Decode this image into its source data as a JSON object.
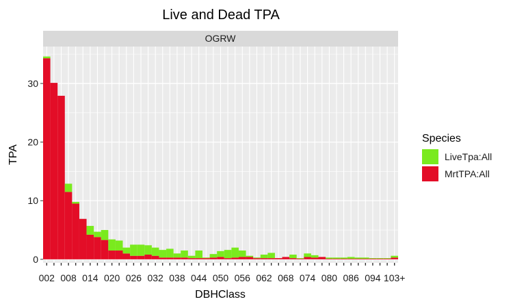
{
  "chart_data": {
    "type": "bar",
    "stacked": true,
    "title": "Live and Dead TPA",
    "facet": "OGRW",
    "xlabel": "DBHClass",
    "ylabel": "TPA",
    "ylim": [
      -0.6,
      36.3
    ],
    "yticks": [
      0,
      10,
      20,
      30
    ],
    "grid": true,
    "xtick_labels": [
      "002",
      "008",
      "014",
      "020",
      "026",
      "032",
      "038",
      "044",
      "050",
      "056",
      "062",
      "068",
      "074",
      "080",
      "086",
      "094",
      "103+"
    ],
    "legend_title": "Species",
    "legend_position": "right",
    "categories": [
      "002",
      "004",
      "006",
      "008",
      "010",
      "012",
      "014",
      "016",
      "018",
      "020",
      "022",
      "024",
      "026",
      "028",
      "030",
      "032",
      "034",
      "036",
      "038",
      "040",
      "042",
      "044",
      "046",
      "048",
      "050",
      "052",
      "054",
      "056",
      "058",
      "060",
      "062",
      "064",
      "066",
      "068",
      "070",
      "072",
      "074",
      "076",
      "078",
      "080",
      "082",
      "084",
      "086",
      "088",
      "090",
      "094",
      "097",
      "100",
      "103+"
    ],
    "series": [
      {
        "name": "MrtTPA:All",
        "color": "#e30d27",
        "values": [
          34.3,
          30.1,
          27.9,
          11.5,
          9.5,
          6.9,
          4.2,
          3.8,
          3.3,
          1.5,
          1.5,
          1.0,
          0.6,
          0.6,
          0.8,
          0.6,
          0.3,
          0.3,
          0.3,
          0.3,
          0.2,
          0.2,
          0.2,
          0.3,
          0.4,
          0.2,
          0.3,
          0.4,
          0.4,
          0.2,
          0.2,
          0.2,
          0.2,
          0.4,
          0.2,
          0.1,
          0.4,
          0.3,
          0.4,
          0.1,
          0.1,
          0.1,
          0.1,
          0.1,
          0.1,
          0.1,
          0.1,
          0.1,
          0.3
        ]
      },
      {
        "name": "LiveTpa:All",
        "color": "#7aea1e",
        "values": [
          0.3,
          0.0,
          0.0,
          1.4,
          0.3,
          0.0,
          1.5,
          0.9,
          1.7,
          1.9,
          1.7,
          1.0,
          1.9,
          1.9,
          1.6,
          1.4,
          1.3,
          1.5,
          0.7,
          1.2,
          0.4,
          1.3,
          0.1,
          0.6,
          1.0,
          1.4,
          1.7,
          1.1,
          0.2,
          0.1,
          0.6,
          0.9,
          0.0,
          0.0,
          0.6,
          0.1,
          0.6,
          0.4,
          0.0,
          0.2,
          0.2,
          0.2,
          0.3,
          0.2,
          0.2,
          0.1,
          0.1,
          0.1,
          0.3
        ]
      }
    ]
  }
}
